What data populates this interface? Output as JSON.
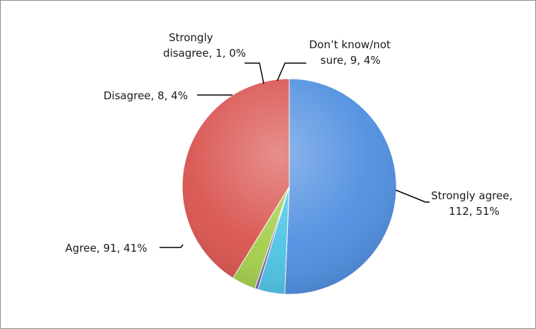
{
  "chart_data": {
    "type": "pie",
    "title": "",
    "slices": [
      {
        "label": "Strongly agree",
        "value": 112,
        "percent": "51%",
        "color": "#4f8fe0"
      },
      {
        "label": "Don’t know/not sure",
        "value": 9,
        "percent": "4%",
        "color": "#4ec3e6"
      },
      {
        "label": "Strongly disagree",
        "value": 1,
        "percent": "0%",
        "color": "#7d5bb0"
      },
      {
        "label": "Disagree",
        "value": 8,
        "percent": "4%",
        "color": "#a3cf4b"
      },
      {
        "label": "Agree",
        "value": 91,
        "percent": "41%",
        "color": "#d9534f"
      }
    ],
    "legend": "none"
  },
  "labels": {
    "strongly_agree": [
      "Strongly agree,",
      "112, 51%"
    ],
    "dont_know": [
      "Don’t know/not",
      "sure, 9, 4%"
    ],
    "strongly_disagree": [
      "Strongly",
      "disagree, 1, 0%"
    ],
    "disagree": [
      "Disagree, 8, 4%"
    ],
    "agree": [
      "Agree, 91, 41%"
    ]
  }
}
